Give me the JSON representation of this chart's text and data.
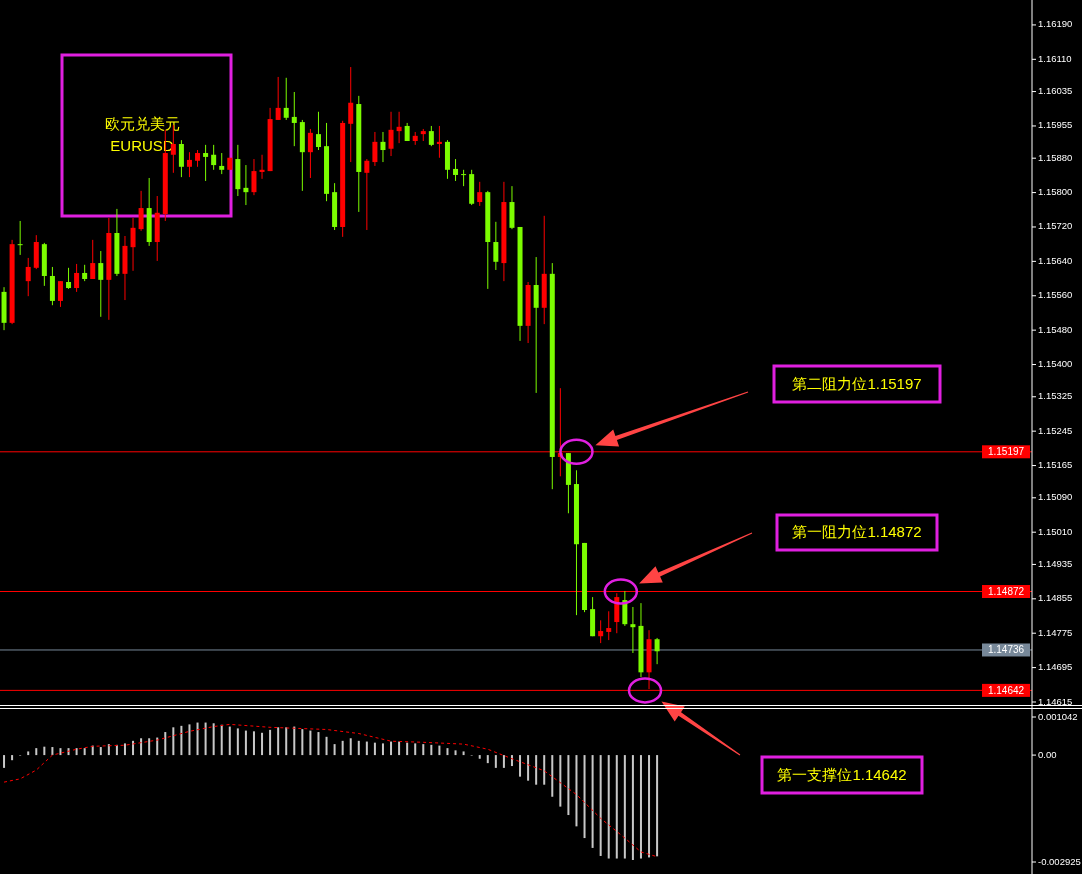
{
  "chart_data": [
    {
      "type": "candlestick",
      "title": "欧元兑美元",
      "subtitle": "EURUSD",
      "tick_labels": "y",
      "categories": [
        null,
        null,
        null,
        null,
        null,
        null,
        null,
        null,
        null,
        null,
        null,
        null,
        null,
        null,
        null,
        null,
        null,
        null,
        null,
        null,
        null,
        null,
        null,
        null,
        null,
        null,
        null,
        null,
        null,
        null,
        null,
        null,
        null,
        null,
        null,
        null,
        null,
        null,
        null,
        null,
        null,
        null,
        null,
        null,
        null,
        null,
        null,
        null,
        null,
        null,
        null,
        null,
        null,
        null,
        null,
        null,
        null,
        null,
        null,
        null,
        null,
        null,
        null,
        null,
        null,
        null,
        null,
        null,
        null,
        null,
        null,
        null,
        null,
        null,
        null,
        null,
        null,
        null,
        null,
        null,
        null,
        null,
        null,
        null,
        null,
        null,
        null,
        null,
        null,
        null,
        null,
        null,
        null,
        null,
        null,
        null,
        null,
        null,
        null,
        null,
        null,
        null,
        null,
        null,
        null,
        null,
        null,
        null,
        null,
        null,
        null,
        null,
        null,
        null,
        null,
        null,
        null,
        null,
        null,
        null,
        null,
        null,
        null,
        null,
        null,
        null,
        null,
        null
      ],
      "ohlc": [
        [
          1.15569,
          1.1558,
          1.1548,
          1.15497
        ],
        [
          1.15497,
          1.1569,
          1.15494,
          1.1568
        ],
        [
          1.1568,
          1.15734,
          1.15655,
          1.1568
        ],
        [
          1.15594,
          1.15648,
          1.15559,
          1.15627
        ],
        [
          1.15625,
          1.15701,
          1.15622,
          1.15685
        ],
        [
          1.1568,
          1.15683,
          1.15583,
          1.15606
        ],
        [
          1.15606,
          1.15627,
          1.15538,
          1.15548
        ],
        [
          1.15548,
          1.15594,
          1.15534,
          1.15594
        ],
        [
          1.15592,
          1.15625,
          1.15576,
          1.15578
        ],
        [
          1.15578,
          1.15634,
          1.15569,
          1.15613
        ],
        [
          1.15613,
          1.15632,
          1.15594,
          1.15599
        ],
        [
          1.15599,
          1.1569,
          1.15599,
          1.15636
        ],
        [
          1.15636,
          1.15664,
          1.15511,
          1.15597
        ],
        [
          1.15597,
          1.15741,
          1.15504,
          1.15706
        ],
        [
          1.15706,
          1.15762,
          1.15606,
          1.15611
        ],
        [
          1.15611,
          1.15699,
          1.1555,
          1.15676
        ],
        [
          1.15673,
          1.15741,
          1.15618,
          1.15718
        ],
        [
          1.15715,
          1.15804,
          1.15711,
          1.15764
        ],
        [
          1.15764,
          1.15834,
          1.15676,
          1.15685
        ],
        [
          1.15685,
          1.15792,
          1.15641,
          1.15753
        ],
        [
          1.1575,
          1.15946,
          1.15734,
          1.15892
        ],
        [
          1.15888,
          1.15957,
          1.15846,
          1.15913
        ],
        [
          1.15913,
          1.15922,
          1.15836,
          1.1586
        ],
        [
          1.1586,
          1.15894,
          1.15836,
          1.15876
        ],
        [
          1.15874,
          1.15899,
          1.1586,
          1.15892
        ],
        [
          1.15892,
          1.15911,
          1.15827,
          1.15883
        ],
        [
          1.15888,
          1.15911,
          1.15853,
          1.15864
        ],
        [
          1.15862,
          1.15892,
          1.15843,
          1.15853
        ],
        [
          1.15853,
          1.15881,
          1.15853,
          1.15881
        ],
        [
          1.15878,
          1.15911,
          1.15792,
          1.15808
        ],
        [
          1.15811,
          1.15864,
          1.15771,
          1.15801
        ],
        [
          1.15801,
          1.15878,
          1.15794,
          1.1585
        ],
        [
          1.15848,
          1.15888,
          1.15832,
          1.15853
        ],
        [
          1.1585,
          1.15997,
          1.1585,
          1.15971
        ],
        [
          1.15969,
          1.16069,
          1.15969,
          1.15997
        ],
        [
          1.15997,
          1.16067,
          1.15969,
          1.15974
        ],
        [
          1.15976,
          1.16034,
          1.15908,
          1.15962
        ],
        [
          1.15964,
          1.15969,
          1.15804,
          1.15894
        ],
        [
          1.15894,
          1.15948,
          1.15834,
          1.15939
        ],
        [
          1.15936,
          1.15988,
          1.15899,
          1.15906
        ],
        [
          1.15908,
          1.15962,
          1.1578,
          1.15797
        ],
        [
          1.15801,
          1.15822,
          1.15713,
          1.1572
        ],
        [
          1.1572,
          1.15967,
          1.15697,
          1.15962
        ],
        [
          1.1596,
          1.16092,
          1.15871,
          1.16009
        ],
        [
          1.16006,
          1.16025,
          1.15755,
          1.15848
        ],
        [
          1.15846,
          1.15878,
          1.15713,
          1.15874
        ],
        [
          1.15871,
          1.15941,
          1.15862,
          1.15918
        ],
        [
          1.15918,
          1.15941,
          1.15871,
          1.15899
        ],
        [
          1.15902,
          1.15988,
          1.15885,
          1.15946
        ],
        [
          1.15943,
          1.15988,
          1.15915,
          1.15953
        ],
        [
          1.15955,
          1.15962,
          1.1592,
          1.1592
        ],
        [
          1.1592,
          1.15941,
          1.15911,
          1.15932
        ],
        [
          1.15936,
          1.15948,
          1.1592,
          1.15943
        ],
        [
          1.15943,
          1.15955,
          1.15908,
          1.15911
        ],
        [
          1.15913,
          1.15955,
          1.15881,
          1.15918
        ],
        [
          1.15918,
          1.15922,
          1.15832,
          1.15853
        ],
        [
          1.15855,
          1.15878,
          1.15827,
          1.15841
        ],
        [
          1.15843,
          1.15853,
          1.15815,
          1.15843
        ],
        [
          1.15843,
          1.15853,
          1.15771,
          1.15774
        ],
        [
          1.15778,
          1.15825,
          1.15769,
          1.15801
        ],
        [
          1.15801,
          1.15804,
          1.15576,
          1.15685
        ],
        [
          1.15685,
          1.15732,
          1.1562,
          1.15639
        ],
        [
          1.15636,
          1.15825,
          1.15594,
          1.15778
        ],
        [
          1.15778,
          1.15815,
          1.15715,
          1.15718
        ],
        [
          1.1572,
          1.1572,
          1.15455,
          1.1549
        ],
        [
          1.1549,
          1.15592,
          1.1545,
          1.15585
        ],
        [
          1.15585,
          1.1565,
          1.15334,
          1.15532
        ],
        [
          1.15532,
          1.15746,
          1.15494,
          1.15611
        ],
        [
          1.15611,
          1.15636,
          1.1511,
          1.15185
        ],
        [
          1.15185,
          1.15345,
          1.1514,
          1.15194
        ],
        [
          1.15194,
          1.15194,
          1.15054,
          1.1512
        ],
        [
          1.15122,
          1.15154,
          1.14817,
          1.14982
        ],
        [
          1.14985,
          1.14985,
          1.14824,
          1.14829
        ],
        [
          1.14831,
          1.14859,
          1.14768,
          1.14768
        ],
        [
          1.14768,
          1.14805,
          1.14752,
          1.1478
        ],
        [
          1.14778,
          1.14826,
          1.14759,
          1.14787
        ],
        [
          1.14801,
          1.14868,
          1.14775,
          1.14859
        ],
        [
          1.14852,
          1.14873,
          1.14792,
          1.14796
        ],
        [
          1.14796,
          1.14836,
          1.14729,
          1.14789
        ],
        [
          1.14792,
          1.14845,
          1.14673,
          1.14684
        ],
        [
          1.14684,
          1.14782,
          1.14645,
          1.14761
        ],
        [
          1.14761,
          1.14764,
          1.14703,
          1.14733
        ],
        null,
        null,
        null,
        null,
        null,
        null,
        null,
        null,
        null,
        null,
        null,
        null,
        null,
        null,
        null,
        null,
        null,
        null,
        null,
        null,
        null,
        null,
        null,
        null,
        null,
        null,
        null,
        null,
        null,
        null,
        null,
        null,
        null,
        null,
        null,
        null,
        null,
        null,
        null,
        null,
        null,
        null,
        null,
        null,
        null,
        null
      ],
      "colors": [
        "#7cfc00",
        "#ff0000",
        "#7cfc00",
        "#ff0000",
        "#ff0000",
        "#7cfc00",
        "#7cfc00",
        "#ff0000",
        "#7cfc00",
        "#ff0000",
        "#7cfc00",
        "#ff0000",
        "#7cfc00",
        "#ff0000",
        "#7cfc00",
        "#ff0000",
        "#ff0000",
        "#ff0000",
        "#7cfc00",
        "#ff0000",
        "#ff0000",
        "#ff0000",
        "#7cfc00",
        "#ff0000",
        "#ff0000",
        "#7cfc00",
        "#7cfc00",
        "#7cfc00",
        "#ff0000",
        "#7cfc00",
        "#7cfc00",
        "#ff0000",
        "#ff0000",
        "#ff0000",
        "#ff0000",
        "#7cfc00",
        "#7cfc00",
        "#7cfc00",
        "#ff0000",
        "#7cfc00",
        "#7cfc00",
        "#7cfc00",
        "#ff0000",
        "#ff0000",
        "#7cfc00",
        "#ff0000",
        "#ff0000",
        "#7cfc00",
        "#ff0000",
        "#ff0000",
        "#7cfc00",
        "#ff0000",
        "#ff0000",
        "#7cfc00",
        "#ff0000",
        "#7cfc00",
        "#7cfc00",
        "#7cfc00",
        "#7cfc00",
        "#ff0000",
        "#7cfc00",
        "#7cfc00",
        "#ff0000",
        "#7cfc00",
        "#7cfc00",
        "#ff0000",
        "#7cfc00",
        "#ff0000",
        "#7cfc00",
        "#ff0000",
        "#7cfc00",
        "#7cfc00",
        "#7cfc00",
        "#7cfc00",
        "#ff0000",
        "#ff0000",
        "#ff0000",
        "#7cfc00",
        "#7cfc00",
        "#7cfc00",
        "#ff0000",
        "#7cfc00",
        null,
        null,
        null,
        null,
        null,
        null,
        null,
        null,
        null,
        null,
        null,
        null,
        null,
        null,
        null,
        null,
        null,
        null,
        null,
        null,
        null,
        null,
        null,
        null,
        null,
        null,
        null,
        null,
        null,
        null,
        null,
        null,
        null,
        null,
        null,
        null,
        null,
        null,
        null,
        null,
        null,
        null,
        null,
        null,
        null,
        null
      ],
      "ylim": [
        1.14608,
        1.16248
      ],
      "yticks": [
        {
          "value": 1.1619,
          "label": "1.16190"
        },
        {
          "value": 1.1611,
          "label": "1.16110"
        },
        1.16035,
        1.15955,
        {
          "value": 1.1588,
          "label": "1.15880"
        },
        {
          "value": 1.158,
          "label": "1.15800"
        },
        {
          "value": 1.1572,
          "label": "1.15720"
        },
        {
          "value": 1.1564,
          "label": "1.15640"
        },
        {
          "value": 1.1556,
          "label": "1.15560"
        },
        {
          "value": 1.1548,
          "label": "1.15480"
        },
        {
          "value": 1.154,
          "label": "1.15400"
        },
        1.15325,
        1.15245,
        1.15165,
        {
          "value": 1.1509,
          "label": "1.15090"
        },
        {
          "value": 1.1501,
          "label": "1.15010"
        },
        1.14935,
        1.14855,
        1.14775,
        1.14695,
        1.14615
      ],
      "ref_lines": [
        {
          "axis": "y",
          "value": 1.15197,
          "label": "1.15197",
          "color": "#ff0000"
        },
        {
          "axis": "y",
          "value": 1.14872,
          "label": "1.14872",
          "color": "#ff0000"
        },
        {
          "axis": "y",
          "value": 1.14736,
          "label": "1.14736",
          "color": "#778899"
        },
        {
          "axis": "y",
          "value": 1.14642,
          "label": "1.14642",
          "color": "#ff0000"
        }
      ],
      "annotations": [
        "第二阻力位1.15197",
        "第一阻力位1.14872",
        "第一支撑位1.14642"
      ]
    },
    {
      "type": "bar",
      "tick_labels": "y",
      "categories": [
        null,
        null,
        null,
        null,
        null,
        null,
        null,
        null,
        null,
        null,
        null,
        null,
        null,
        null,
        null,
        null,
        null,
        null,
        null,
        null,
        null,
        null,
        null,
        null,
        null,
        null,
        null,
        null,
        null,
        null,
        null,
        null,
        null,
        null,
        null,
        null,
        null,
        null,
        null,
        null,
        null,
        null,
        null,
        null,
        null,
        null,
        null,
        null,
        null,
        null,
        null,
        null,
        null,
        null,
        null,
        null,
        null,
        null,
        null,
        null,
        null,
        null,
        null,
        null,
        null,
        null,
        null,
        null,
        null,
        null,
        null,
        null,
        null,
        null,
        null,
        null,
        null,
        null,
        null,
        null,
        null,
        null,
        null,
        null,
        null,
        null,
        null,
        null,
        null,
        null,
        null,
        null,
        null,
        null,
        null,
        null,
        null,
        null,
        null,
        null,
        null,
        null,
        null,
        null,
        null,
        null,
        null,
        null,
        null,
        null,
        null,
        null,
        null,
        null,
        null,
        null,
        null,
        null,
        null,
        null,
        null,
        null,
        null,
        null,
        null,
        null,
        null,
        null
      ],
      "series": [
        {
          "type": "bar",
          "color": "#c8c8c8",
          "values": [
            -0.00035,
            -0.00014,
            0,
            0.0001,
            0.00019,
            0.00023,
            0.00022,
            0.00019,
            0.00019,
            0.00019,
            0.00019,
            0.00026,
            0.00022,
            0.0003,
            0.00028,
            0.00032,
            0.00039,
            0.00046,
            0.00046,
            0.00048,
            0.00063,
            0.00076,
            0.0008,
            0.00084,
            0.00089,
            0.00089,
            0.00087,
            0.00083,
            0.00078,
            0.00073,
            0.00067,
            0.00065,
            0.00061,
            0.00069,
            0.00076,
            0.00076,
            0.00078,
            0.00071,
            0.00067,
            0.00063,
            0.0005,
            0.0003,
            0.00039,
            0.00046,
            0.00039,
            0.00037,
            0.00034,
            0.00032,
            0.00037,
            0.00037,
            0.00034,
            0.00032,
            0.0003,
            0.00028,
            0.00026,
            0.00019,
            0.00013,
            0.0001,
            0,
            -0.0001,
            -0.00022,
            -0.00035,
            -0.00035,
            -0.0003,
            -0.00059,
            -0.0007,
            -0.00081,
            -0.00081,
            -0.00114,
            -0.00141,
            -0.00164,
            -0.00195,
            -0.00227,
            -0.00254,
            -0.00276,
            -0.00283,
            -0.00283,
            -0.00283,
            -0.00287,
            -0.00283,
            -0.0028,
            -0.00277,
            null,
            null,
            null,
            null,
            null,
            null,
            null,
            null,
            null,
            null,
            null,
            null,
            null,
            null,
            null,
            null,
            null,
            null,
            null,
            null,
            null,
            null,
            null,
            null,
            null,
            null,
            null,
            null,
            null,
            null,
            null,
            null,
            null,
            null,
            null,
            null,
            null,
            null,
            null,
            null,
            null,
            null,
            null,
            null,
            null,
            null
          ]
        },
        {
          "type": "line",
          "color": "#ff0000",
          "line_style": "dashed",
          "values": [
            -0.00074,
            null,
            -0.00065,
            null,
            -0.00041,
            null,
            0,
            null,
            null,
            0.00016,
            null,
            0.00024,
            null,
            null,
            null,
            0.00027,
            null,
            null,
            null,
            0.00041,
            null,
            null,
            null,
            0.00065,
            null,
            null,
            0.00078,
            null,
            0.00084,
            null,
            null,
            null,
            null,
            0.00076,
            null,
            null,
            null,
            null,
            null,
            null,
            0.0007,
            null,
            null,
            null,
            0.00059,
            null,
            null,
            null,
            0.00038,
            null,
            null,
            null,
            0.00035,
            null,
            null,
            null,
            null,
            0.0003,
            null,
            null,
            0.00016,
            null,
            null,
            -0.0001,
            null,
            null,
            null,
            -0.00043,
            null,
            null,
            null,
            -0.00108,
            null,
            null,
            -0.00173,
            null,
            null,
            -0.00227,
            null,
            -0.00265,
            null,
            -0.00278,
            null,
            null,
            null,
            null,
            null,
            null,
            null,
            null,
            null,
            null,
            null,
            null,
            null,
            null,
            null,
            null,
            null,
            null,
            null,
            null,
            null,
            null,
            null,
            null,
            null,
            null,
            null,
            null,
            null,
            null,
            null,
            null,
            null,
            null,
            null,
            null,
            null,
            null,
            null,
            null,
            null,
            null,
            null,
            null,
            null,
            null
          ]
        }
      ],
      "ylim": [
        -0.002925,
        0.001042
      ],
      "yticks": [
        {
          "value": 0.001042,
          "label": "0.001042"
        },
        {
          "value": 0,
          "label": "0.00"
        },
        {
          "value": -0.002925,
          "label": "-0.002925"
        }
      ]
    }
  ]
}
